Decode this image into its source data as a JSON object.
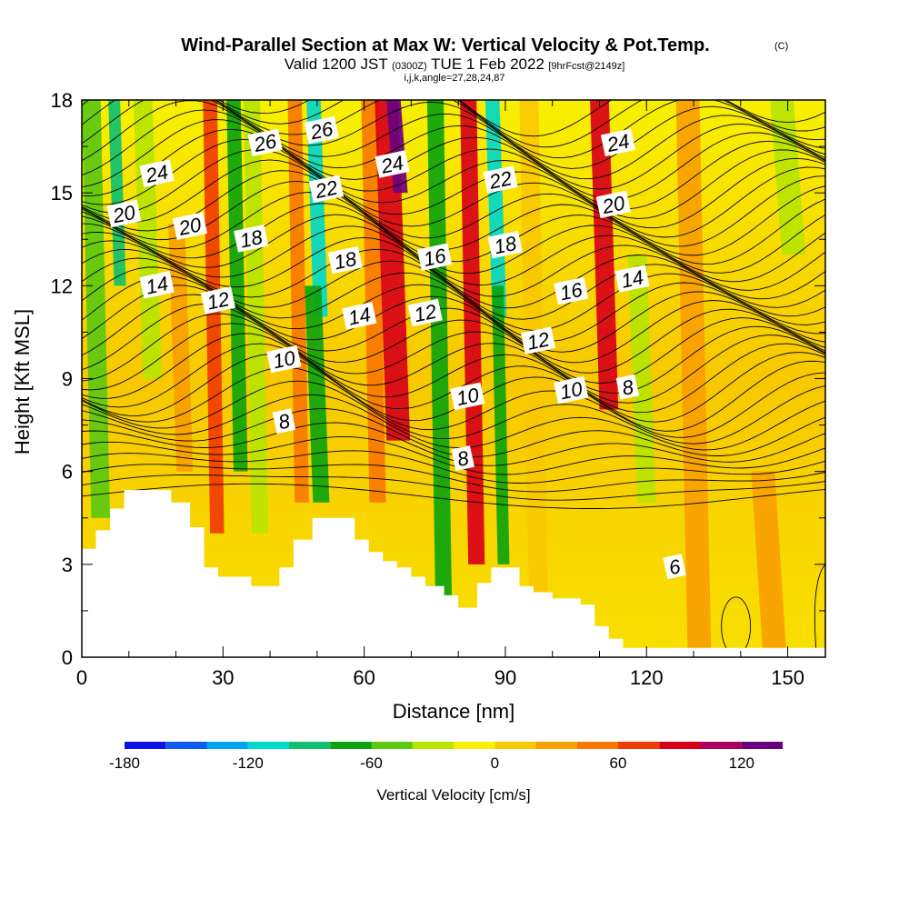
{
  "title": "Wind-Parallel Section at Max W: Vertical Velocity & Pot.Temp.",
  "title_mark": "(C)",
  "subtitle_prefix": "Valid 1200 JST",
  "subtitle_utc": "(0300Z)",
  "subtitle_date": "TUE 1 Feb 2022",
  "subtitle_fcst": "[9hrFcst@2149z]",
  "subtitle_indices": "i,j,k,angle=27,28,24,87",
  "colors": {
    "terrain": "#ffffff",
    "levels": [
      "#1010e8",
      "#0c5cf0",
      "#00a4f0",
      "#00d8c8",
      "#10c070",
      "#0ca40c",
      "#5cc810",
      "#b8e400",
      "#f8f000",
      "#f8c800",
      "#f8a000",
      "#f87800",
      "#f03c00",
      "#d80018",
      "#a8005c",
      "#6c0080"
    ]
  },
  "chart_data": {
    "type": "heatmap",
    "xlabel": "Distance [nm]",
    "ylabel": "Height [Kft MSL]",
    "xlim": [
      0,
      158
    ],
    "ylim": [
      0,
      18
    ],
    "xticks": [
      0,
      30,
      60,
      90,
      120,
      150
    ],
    "yticks": [
      0,
      3,
      6,
      9,
      12,
      15,
      18
    ],
    "colorbar": {
      "label": "Vertical Velocity [cm/s]",
      "min": -180,
      "max": 140,
      "step": 20,
      "tick_values": [
        -180,
        -120,
        -60,
        0,
        60,
        120
      ]
    },
    "terrain_profile": [
      [
        0,
        3.5
      ],
      [
        3,
        3.5
      ],
      [
        3,
        4.1
      ],
      [
        6,
        4.1
      ],
      [
        6,
        4.8
      ],
      [
        9,
        4.8
      ],
      [
        9,
        5.4
      ],
      [
        19,
        5.4
      ],
      [
        19,
        5.0
      ],
      [
        23,
        5.0
      ],
      [
        23,
        4.2
      ],
      [
        26,
        4.2
      ],
      [
        26,
        2.9
      ],
      [
        29,
        2.9
      ],
      [
        29,
        2.6
      ],
      [
        36,
        2.6
      ],
      [
        36,
        2.3
      ],
      [
        42,
        2.3
      ],
      [
        42,
        2.9
      ],
      [
        45,
        2.9
      ],
      [
        45,
        3.8
      ],
      [
        49,
        3.8
      ],
      [
        49,
        4.5
      ],
      [
        58,
        4.5
      ],
      [
        58,
        3.8
      ],
      [
        61,
        3.8
      ],
      [
        61,
        3.4
      ],
      [
        64,
        3.4
      ],
      [
        64,
        3.1
      ],
      [
        67,
        3.1
      ],
      [
        67,
        2.9
      ],
      [
        70,
        2.9
      ],
      [
        70,
        2.6
      ],
      [
        73,
        2.6
      ],
      [
        73,
        2.3
      ],
      [
        77,
        2.3
      ],
      [
        77,
        2.0
      ],
      [
        80,
        2.0
      ],
      [
        80,
        1.6
      ],
      [
        84,
        1.6
      ],
      [
        84,
        2.4
      ],
      [
        87,
        2.4
      ],
      [
        87,
        2.9
      ],
      [
        93,
        2.9
      ],
      [
        93,
        2.3
      ],
      [
        96,
        2.3
      ],
      [
        96,
        2.1
      ],
      [
        100,
        2.1
      ],
      [
        100,
        1.9
      ],
      [
        106,
        1.9
      ],
      [
        106,
        1.7
      ],
      [
        109,
        1.7
      ],
      [
        109,
        1.0
      ],
      [
        112,
        1.0
      ],
      [
        112,
        0.6
      ],
      [
        115,
        0.6
      ],
      [
        115,
        0.3
      ],
      [
        158,
        0.3
      ]
    ],
    "velocity_bands": [
      {
        "x": 3,
        "w": 4.0,
        "val": -60,
        "zmin": 4.5,
        "zmax": 18
      },
      {
        "x": 7.5,
        "w": 2.5,
        "val": -100,
        "zmin": 12,
        "zmax": 18
      },
      {
        "x": 14,
        "w": 4.0,
        "val": -40,
        "zmin": 9,
        "zmax": 18
      },
      {
        "x": 21,
        "w": 3.5,
        "val": 30,
        "zmin": 6,
        "zmax": 14
      },
      {
        "x": 28,
        "w": 3.0,
        "val": 75,
        "zmin": 4,
        "zmax": 18
      },
      {
        "x": 33,
        "w": 3.0,
        "val": -75,
        "zmin": 6,
        "zmax": 18
      },
      {
        "x": 37,
        "w": 3.5,
        "val": -40,
        "zmin": 4,
        "zmax": 18
      },
      {
        "x": 46,
        "w": 3.0,
        "val": 50,
        "zmin": 5,
        "zmax": 18
      },
      {
        "x": 50,
        "w": 3.0,
        "val": -120,
        "zmin": 11,
        "zmax": 18
      },
      {
        "x": 50,
        "w": 3.5,
        "val": -75,
        "zmin": 5,
        "zmax": 12
      },
      {
        "x": 62,
        "w": 3.5,
        "val": 55,
        "zmin": 5,
        "zmax": 18
      },
      {
        "x": 66,
        "w": 5.0,
        "val": 90,
        "zmin": 7,
        "zmax": 18
      },
      {
        "x": 67,
        "w": 3.0,
        "val": 130,
        "zmin": 15,
        "zmax": 18
      },
      {
        "x": 76,
        "w": 3.5,
        "val": -75,
        "zmin": 2,
        "zmax": 18
      },
      {
        "x": 83,
        "w": 3.5,
        "val": 80,
        "zmin": 3,
        "zmax": 18
      },
      {
        "x": 88,
        "w": 3.0,
        "val": -110,
        "zmin": 11,
        "zmax": 18
      },
      {
        "x": 89,
        "w": 2.5,
        "val": -65,
        "zmin": 3,
        "zmax": 12
      },
      {
        "x": 96,
        "w": 4.0,
        "val": 15,
        "zmin": 2,
        "zmax": 18
      },
      {
        "x": 111,
        "w": 4.0,
        "val": 80,
        "zmin": 8,
        "zmax": 18
      },
      {
        "x": 119,
        "w": 4.0,
        "val": -30,
        "zmin": 5,
        "zmax": 13
      },
      {
        "x": 130,
        "w": 5.0,
        "val": 20,
        "zmin": 0,
        "zmax": 18
      },
      {
        "x": 146,
        "w": 5.0,
        "val": 25,
        "zmin": 0,
        "zmax": 6
      },
      {
        "x": 150,
        "w": 5.0,
        "val": -30,
        "zmin": 13,
        "zmax": 18
      }
    ],
    "contour_labels": [
      {
        "text": "26",
        "x": 39,
        "z": 16.6
      },
      {
        "text": "26",
        "x": 51,
        "z": 17.0
      },
      {
        "text": "24",
        "x": 16,
        "z": 15.6
      },
      {
        "text": "24",
        "x": 66,
        "z": 15.9
      },
      {
        "text": "24",
        "x": 114,
        "z": 16.6
      },
      {
        "text": "22",
        "x": 52,
        "z": 15.1
      },
      {
        "text": "22",
        "x": 89,
        "z": 15.4
      },
      {
        "text": "20",
        "x": 9,
        "z": 14.3
      },
      {
        "text": "20",
        "x": 23,
        "z": 13.9
      },
      {
        "text": "20",
        "x": 113,
        "z": 14.6
      },
      {
        "text": "18",
        "x": 36,
        "z": 13.5
      },
      {
        "text": "18",
        "x": 56,
        "z": 12.8
      },
      {
        "text": "18",
        "x": 90,
        "z": 13.3
      },
      {
        "text": "16",
        "x": 75,
        "z": 12.9
      },
      {
        "text": "16",
        "x": 104,
        "z": 11.8
      },
      {
        "text": "14",
        "x": 16,
        "z": 12.0
      },
      {
        "text": "14",
        "x": 59,
        "z": 11.0
      },
      {
        "text": "14",
        "x": 117,
        "z": 12.2
      },
      {
        "text": "12",
        "x": 29,
        "z": 11.5
      },
      {
        "text": "12",
        "x": 73,
        "z": 11.1
      },
      {
        "text": "12",
        "x": 97,
        "z": 10.2
      },
      {
        "text": "10",
        "x": 43,
        "z": 9.6
      },
      {
        "text": "10",
        "x": 82,
        "z": 8.4
      },
      {
        "text": "10",
        "x": 104,
        "z": 8.6
      },
      {
        "text": "8",
        "x": 43,
        "z": 7.6
      },
      {
        "text": "8",
        "x": 81,
        "z": 6.4
      },
      {
        "text": "8",
        "x": 116,
        "z": 8.7
      },
      {
        "text": "6",
        "x": 126,
        "z": 2.9
      }
    ]
  }
}
